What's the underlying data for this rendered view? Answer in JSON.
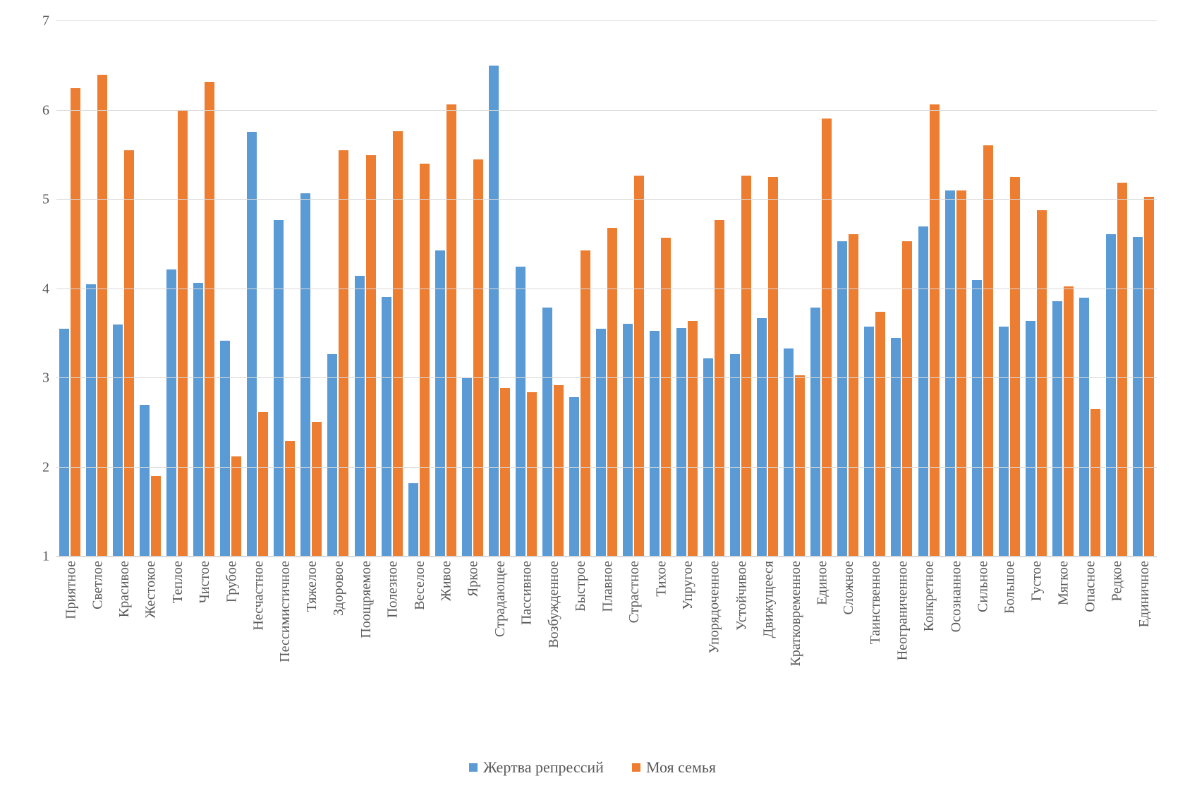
{
  "chart": {
    "type": "bar",
    "background_color": "#ffffff",
    "grid_color": "#d9d9d9",
    "text_color": "#595959",
    "label_fontsize": 20,
    "ylim": [
      1,
      7
    ],
    "ytick_step": 1,
    "yticks": [
      1,
      2,
      3,
      4,
      5,
      6,
      7
    ],
    "bar_width": 0.42,
    "series": [
      {
        "name": "Жертва репрессий",
        "color": "#5b9bd5"
      },
      {
        "name": "Моя семья",
        "color": "#ed7d31"
      }
    ],
    "categories": [
      "Приятное",
      "Светлое",
      "Красивое",
      "Жестокое",
      "Теплое",
      "Чистое",
      "Грубое",
      "Несчастное",
      "Пессимистичное",
      "Тяжелое",
      "Здоровое",
      "Поощряемое",
      "Полезное",
      "Веселое",
      "Живое",
      "Яркое",
      "Страдающее",
      "Пассивное",
      "Возбужденное",
      "Быстрое",
      "Плавное",
      "Страстное",
      "Тихое",
      "Упругое",
      "Упорядоченное",
      "Устойчивое",
      "Движущееся",
      "Кратковременное",
      "Единое",
      "Сложное",
      "Таинственное",
      "Неограниченное",
      "Конкретное",
      "Осознанное",
      "Сильное",
      "Большое",
      "Густое",
      "Мягкое",
      "Опасное",
      "Редкое",
      "Единичное"
    ],
    "values_series1": [
      3.55,
      4.05,
      3.6,
      2.7,
      4.22,
      4.07,
      3.42,
      5.76,
      4.77,
      5.07,
      3.27,
      4.15,
      3.91,
      1.82,
      4.43,
      3.0,
      6.5,
      4.25,
      3.79,
      2.79,
      3.55,
      3.61,
      3.53,
      3.56,
      3.22,
      3.27,
      3.67,
      3.33,
      3.79,
      4.53,
      3.58,
      3.45,
      4.7,
      5.1,
      4.1,
      3.58,
      3.64,
      3.86,
      3.9,
      4.61,
      4.58
    ],
    "values_series2": [
      6.25,
      6.4,
      5.55,
      1.9,
      6.0,
      6.32,
      2.12,
      2.62,
      2.3,
      2.51,
      5.55,
      5.5,
      5.77,
      5.4,
      6.07,
      5.45,
      2.89,
      2.84,
      2.92,
      4.43,
      4.68,
      5.27,
      4.57,
      3.64,
      4.77,
      5.27,
      5.25,
      3.03,
      5.91,
      4.61,
      3.74,
      4.53,
      6.07,
      5.1,
      5.61,
      5.25,
      4.88,
      4.03,
      2.65,
      5.19,
      5.03
    ],
    "legend_position": "bottom"
  }
}
